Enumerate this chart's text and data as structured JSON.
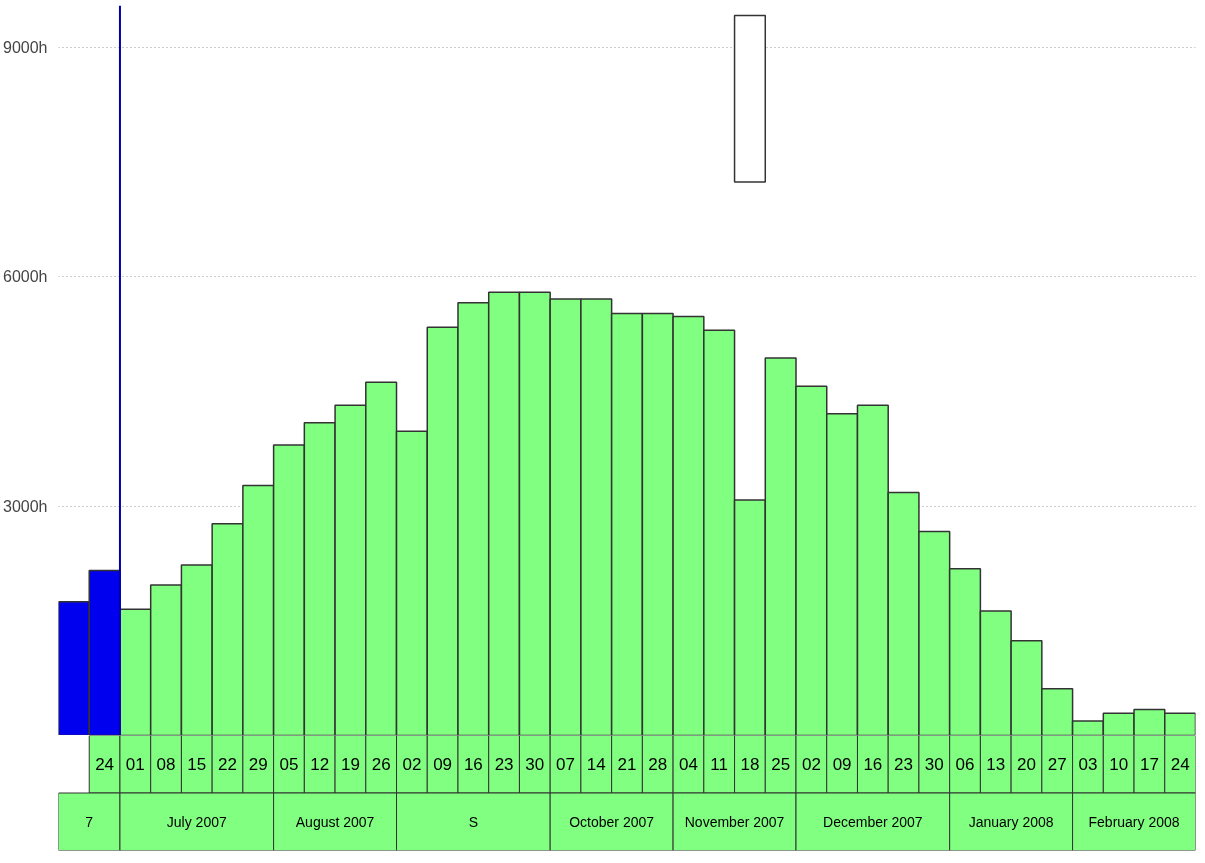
{
  "chart_data": {
    "type": "bar",
    "categories": [
      null,
      "24",
      "01",
      "08",
      "15",
      "22",
      "29",
      "05",
      "12",
      "19",
      "26",
      "02",
      "09",
      "16",
      "23",
      "30",
      "07",
      "14",
      "21",
      "28",
      "04",
      "11",
      "18",
      "25",
      "02",
      "09",
      "16",
      "23",
      "30",
      "06",
      "13",
      "20",
      "27",
      "03",
      "10",
      "17",
      "24"
    ],
    "series": [
      {
        "colors": [
          "#0000ee",
          "#0000ee",
          "#80ff80",
          "#80ff80",
          "#80ff80",
          "#80ff80",
          "#80ff80",
          "#80ff80",
          "#80ff80",
          "#80ff80",
          "#80ff80",
          "#80ff80",
          "#80ff80",
          "#80ff80",
          "#80ff80",
          "#80ff80",
          "#80ff80",
          "#80ff80",
          "#80ff80",
          "#80ff80",
          "#80ff80",
          "#80ff80",
          "#80ff80",
          "#80ff80",
          "#80ff80",
          "#80ff80",
          "#80ff80",
          "#80ff80",
          "#80ff80",
          "#80ff80",
          "#80ff80",
          "#80ff80",
          "#80ff80",
          "#80ff80",
          "#80ff80",
          "#80ff80",
          "#80ff80"
        ],
        "values": [
          1750,
          2160,
          1650,
          1970,
          2230,
          2770,
          3270,
          3800,
          4090,
          4320,
          4620,
          3980,
          5340,
          5660,
          5800,
          5800,
          5710,
          5710,
          5520,
          5520,
          5480,
          5300,
          3080,
          4940,
          4570,
          4210,
          4320,
          3180,
          2670,
          2180,
          1630,
          1240,
          610,
          190,
          290,
          340,
          290
        ]
      },
      {
        "color": "#ffffff",
        "base": [
          null,
          null,
          null,
          null,
          null,
          null,
          null,
          null,
          null,
          null,
          null,
          null,
          null,
          null,
          null,
          null,
          null,
          null,
          null,
          null,
          null,
          null,
          7240,
          null,
          null,
          null,
          null,
          null,
          null,
          null,
          null,
          null,
          null,
          null,
          null,
          null,
          null
        ],
        "values": [
          null,
          null,
          null,
          null,
          null,
          null,
          null,
          null,
          null,
          null,
          null,
          null,
          null,
          null,
          null,
          null,
          null,
          null,
          null,
          null,
          null,
          null,
          2180,
          null,
          null,
          null,
          null,
          null,
          null,
          null,
          null,
          null,
          null,
          null,
          null,
          null,
          null
        ]
      }
    ],
    "ylim": [
      0,
      9550
    ],
    "yticks": [
      {
        "value": 3000,
        "label": "3000h"
      },
      {
        "value": 6000,
        "label": "6000h"
      },
      {
        "value": 9000,
        "label": "9000h"
      }
    ],
    "grid": "y",
    "ref_lines": [
      {
        "axis": "x",
        "value": "24",
        "color": "#0000aa"
      }
    ],
    "annotations": [
      "7",
      "July 2007",
      "August 2007",
      "S",
      "October 2007",
      "November 2007",
      "December 2007",
      "January 2008",
      "February 2008"
    ]
  }
}
